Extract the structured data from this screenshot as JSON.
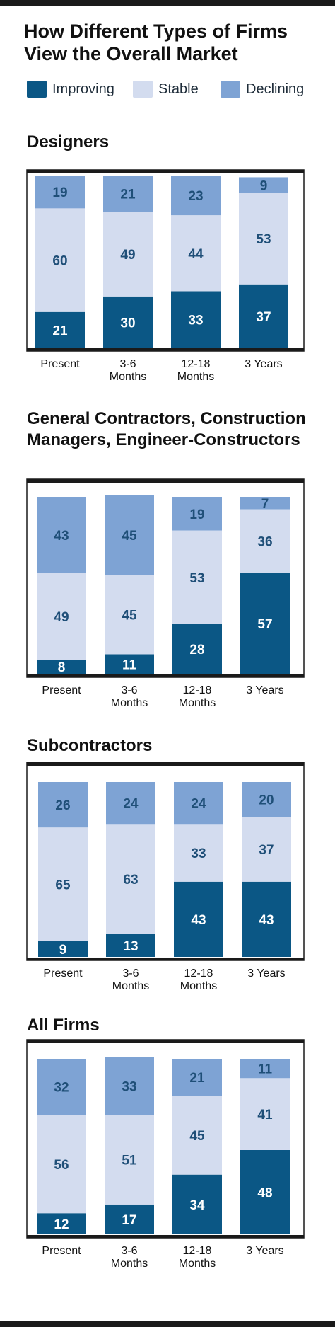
{
  "title": "How Different Types of Firms View the Overall Market",
  "legend": [
    {
      "name": "Improving",
      "color": "#0b5785"
    },
    {
      "name": "Stable",
      "color": "#d3dcef"
    },
    {
      "name": "Declining",
      "color": "#7ea3d4"
    }
  ],
  "chart_data": [
    {
      "type": "bar",
      "stacked": true,
      "title": "Designers",
      "categories": [
        "Present",
        "3-6 Months",
        "12-18 Months",
        "3 Years"
      ],
      "series": [
        {
          "name": "Improving",
          "values": [
            21,
            30,
            33,
            37
          ]
        },
        {
          "name": "Stable",
          "values": [
            60,
            49,
            44,
            53
          ]
        },
        {
          "name": "Declining",
          "values": [
            19,
            21,
            23,
            9
          ]
        }
      ]
    },
    {
      "type": "bar",
      "stacked": true,
      "title": "General Contractors, Construction Managers, Engineer-Constructors",
      "categories": [
        "Present",
        "3-6 Months",
        "12-18 Months",
        "3 Years"
      ],
      "series": [
        {
          "name": "Improving",
          "values": [
            8,
            11,
            28,
            57
          ]
        },
        {
          "name": "Stable",
          "values": [
            49,
            45,
            53,
            36
          ]
        },
        {
          "name": "Declining",
          "values": [
            43,
            45,
            19,
            7
          ]
        }
      ]
    },
    {
      "type": "bar",
      "stacked": true,
      "title": "Subcontractors",
      "categories": [
        "Present",
        "3-6 Months",
        "12-18 Months",
        "3 Years"
      ],
      "series": [
        {
          "name": "Improving",
          "values": [
            9,
            13,
            43,
            43
          ]
        },
        {
          "name": "Stable",
          "values": [
            65,
            63,
            33,
            37
          ]
        },
        {
          "name": "Declining",
          "values": [
            26,
            24,
            24,
            20
          ]
        }
      ]
    },
    {
      "type": "bar",
      "stacked": true,
      "title": "All Firms",
      "categories": [
        "Present",
        "3-6 Months",
        "12-18 Months",
        "3 Years"
      ],
      "series": [
        {
          "name": "Improving",
          "values": [
            12,
            17,
            34,
            48
          ]
        },
        {
          "name": "Stable",
          "values": [
            56,
            51,
            45,
            41
          ]
        },
        {
          "name": "Declining",
          "values": [
            32,
            33,
            21,
            11
          ]
        }
      ]
    }
  ]
}
